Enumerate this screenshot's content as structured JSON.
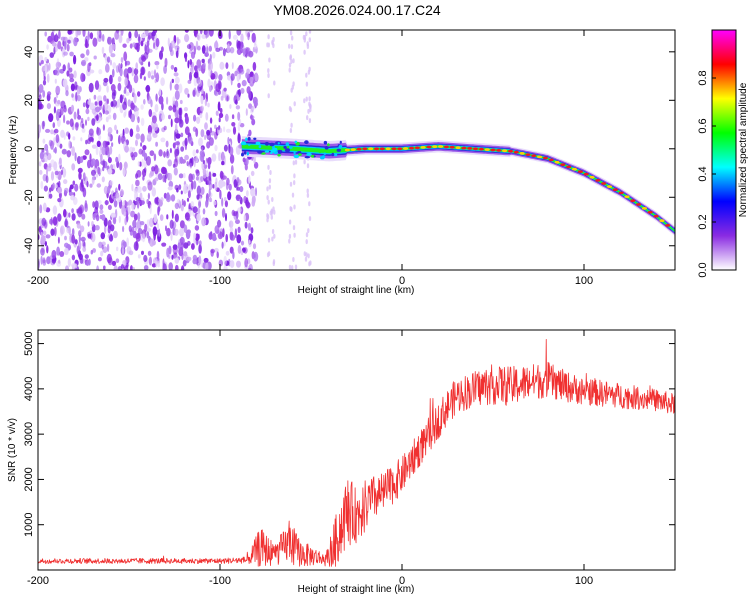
{
  "title": "YM08.2026.024.00.17.C24",
  "chart_data": [
    {
      "type": "heatmap",
      "name": "spectrogram",
      "xlabel": "Height of straight line (km)",
      "ylabel": "Frequency (Hz)",
      "xlim": [
        -200,
        150
      ],
      "ylim": [
        -50,
        49
      ],
      "xticks": [
        -200,
        -100,
        0,
        100
      ],
      "yticks": [
        -40,
        -20,
        0,
        20,
        40
      ],
      "xtick_labels": [
        "-200",
        "-100",
        "0",
        "100"
      ],
      "ytick_labels": [
        "-40",
        "-20",
        "0",
        "20",
        "40"
      ],
      "noise_region_x": [
        -200,
        -80
      ],
      "trace": [
        {
          "x": -88,
          "f": 1
        },
        {
          "x": -60,
          "f": 0
        },
        {
          "x": -40,
          "f": -1
        },
        {
          "x": -20,
          "f": 0
        },
        {
          "x": 0,
          "f": 0
        },
        {
          "x": 20,
          "f": 1
        },
        {
          "x": 40,
          "f": 0
        },
        {
          "x": 60,
          "f": -1
        },
        {
          "x": 80,
          "f": -4
        },
        {
          "x": 100,
          "f": -10
        },
        {
          "x": 120,
          "f": -18
        },
        {
          "x": 140,
          "f": -28
        },
        {
          "x": 150,
          "f": -34
        }
      ],
      "colorbar": {
        "label": "Normalized spectral amplitude",
        "range": [
          0.0,
          1.0
        ],
        "ticks": [
          0.0,
          0.2,
          0.4,
          0.6,
          0.8
        ],
        "tick_labels": [
          "0.0",
          "0.2",
          "0.4",
          "0.6",
          "0.8"
        ],
        "colors": [
          "#ffffff",
          "#8a2be2",
          "#0000ff",
          "#00ffff",
          "#00ff00",
          "#ffff00",
          "#ff0000",
          "#ff00ff"
        ]
      }
    },
    {
      "type": "line",
      "name": "snr",
      "xlabel": "Height of straight line (km)",
      "ylabel": "SNR (10 * v/v)",
      "xlim": [
        -200,
        150
      ],
      "ylim": [
        0,
        5300
      ],
      "xticks": [
        -200,
        -100,
        0,
        100
      ],
      "yticks": [
        1000,
        2000,
        3000,
        4000,
        5000
      ],
      "xtick_labels": [
        "-200",
        "-100",
        "0",
        "100"
      ],
      "ytick_labels": [
        "1000",
        "2000",
        "3000",
        "4000",
        "5000"
      ],
      "color": "#f03030",
      "series": [
        {
          "name": "SNR",
          "x": [
            -200,
            -150,
            -100,
            -85,
            -78,
            -70,
            -62,
            -55,
            -48,
            -42,
            -38,
            -34,
            -30,
            -25,
            -20,
            -15,
            -10,
            -5,
            0,
            5,
            10,
            15,
            20,
            25,
            30,
            40,
            50,
            60,
            70,
            80,
            90,
            100,
            110,
            120,
            130,
            140,
            150
          ],
          "y": [
            200,
            200,
            200,
            220,
            500,
            350,
            600,
            350,
            300,
            220,
            450,
            900,
            1300,
            1200,
            1400,
            1600,
            1700,
            1900,
            2100,
            2400,
            2700,
            3000,
            3300,
            3600,
            3850,
            4000,
            4100,
            4050,
            4150,
            4200,
            4050,
            3950,
            3900,
            3850,
            3800,
            3750,
            3650
          ],
          "spread": [
            60,
            60,
            60,
            80,
            450,
            250,
            450,
            300,
            200,
            150,
            500,
            700,
            800,
            600,
            600,
            500,
            450,
            450,
            400,
            400,
            400,
            400,
            400,
            400,
            400,
            400,
            450,
            450,
            400,
            400,
            350,
            300,
            300,
            280,
            260,
            250,
            240
          ]
        }
      ]
    }
  ]
}
